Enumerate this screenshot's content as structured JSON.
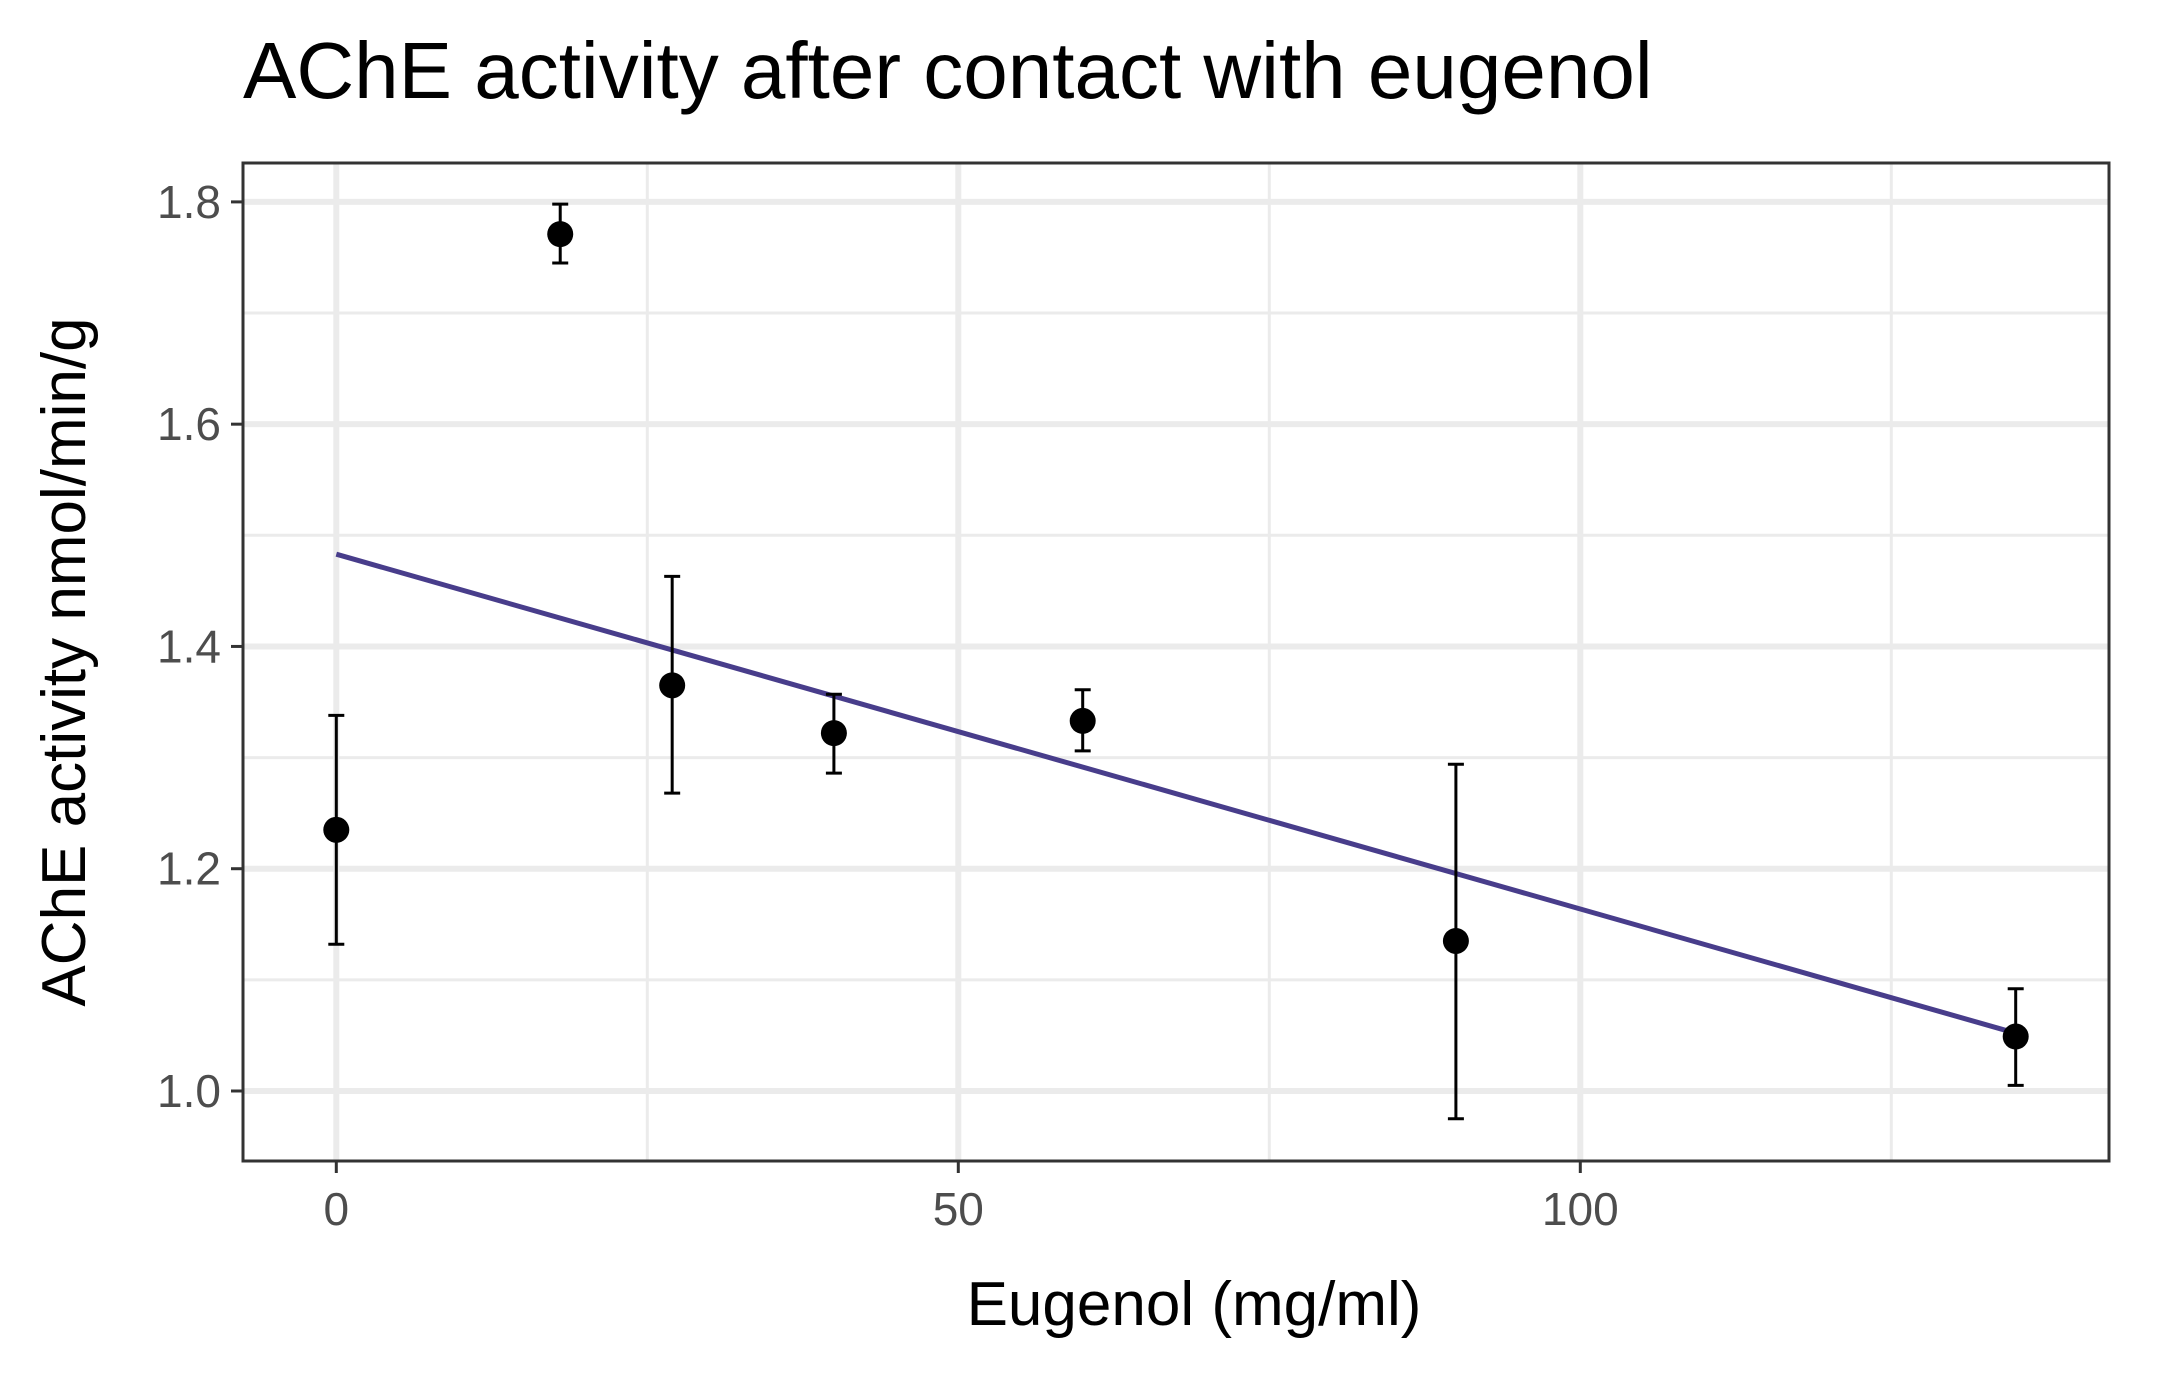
{
  "chart_data": {
    "type": "scatter",
    "title": "AChE activity after contact with eugenol",
    "xlabel": "Eugenol (mg/ml)",
    "ylabel": "AChE activity nmol/min/g",
    "xlim": [
      -7.5,
      142.5
    ],
    "ylim": [
      0.937,
      1.835
    ],
    "x_ticks": [
      0,
      50,
      100
    ],
    "x_tick_labels": [
      "0",
      "50",
      "100"
    ],
    "x_minor_ticks": [
      25,
      75,
      125
    ],
    "y_ticks": [
      1.0,
      1.2,
      1.4,
      1.6,
      1.8
    ],
    "y_tick_labels": [
      "1.0",
      "1.2",
      "1.4",
      "1.6",
      "1.8"
    ],
    "y_minor_ticks": [
      1.1,
      1.3,
      1.5,
      1.7
    ],
    "grid": true,
    "points": [
      {
        "x": 0,
        "y": 1.235,
        "ymin": 1.132,
        "ymax": 1.338
      },
      {
        "x": 18,
        "y": 1.771,
        "ymin": 1.745,
        "ymax": 1.798
      },
      {
        "x": 27,
        "y": 1.365,
        "ymin": 1.268,
        "ymax": 1.463
      },
      {
        "x": 40,
        "y": 1.322,
        "ymin": 1.286,
        "ymax": 1.357
      },
      {
        "x": 60,
        "y": 1.333,
        "ymin": 1.306,
        "ymax": 1.361
      },
      {
        "x": 90,
        "y": 1.135,
        "ymin": 0.975,
        "ymax": 1.294
      },
      {
        "x": 135,
        "y": 1.049,
        "ymin": 1.005,
        "ymax": 1.092
      }
    ],
    "fit_line": {
      "x": [
        0,
        135
      ],
      "y": [
        1.483,
        1.052
      ]
    },
    "colors": {
      "points": "#000000",
      "fit_line": "#483D8B",
      "grid": "#ebebeb",
      "border": "#333333"
    }
  }
}
